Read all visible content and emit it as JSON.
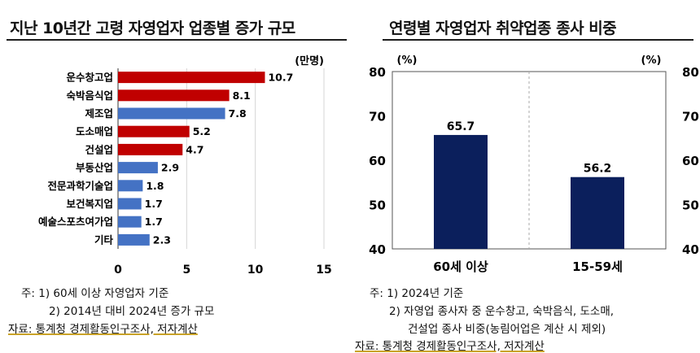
{
  "left": {
    "title": "지난 10년간 고령 자영업자 업종별 증가 규모",
    "unit": "(만명)",
    "notes": {
      "note1": "주: 1) 60세 이상 자영업자 기준",
      "note2": "2) 2014년 대비 2024년 증가 규모",
      "source": "자료: 통계청 경제활동인구조사, 저자계산"
    }
  },
  "right": {
    "title": "연령별 자영업자 취약업종 종사 비중",
    "unit_left": "(%)",
    "unit_right": "(%)",
    "notes": {
      "note1": "주: 1) 2024년 기준",
      "note2": "2) 자영업 종사자 중 운수창고, 숙박음식, 도소매,",
      "note3": "건설업 종사 비중(농림어업은 계산 시 제외)",
      "source": "자료: 통계청 경제활동인구조사, 저자계산"
    }
  },
  "chart_data": [
    {
      "type": "bar",
      "orientation": "horizontal",
      "title": "지난 10년간 고령 자영업자 업종별 증가 규모",
      "unit": "(만명)",
      "categories": [
        "운수창고업",
        "숙박음식업",
        "제조업",
        "도소매업",
        "건설업",
        "부동산업",
        "전문과학기술업",
        "보건복지업",
        "예술스포츠여가업",
        "기타"
      ],
      "values": [
        10.7,
        8.1,
        7.8,
        5.2,
        4.7,
        2.9,
        1.8,
        1.7,
        1.7,
        2.3
      ],
      "value_labels": [
        "10.7",
        "8.1",
        "7.8",
        "5.2",
        "4.7",
        "2.9",
        "1.8",
        "1.7",
        "1.7",
        "2.3"
      ],
      "bar_colors": [
        "#c00000",
        "#c00000",
        "#4472c4",
        "#c00000",
        "#c00000",
        "#4472c4",
        "#4472c4",
        "#4472c4",
        "#4472c4",
        "#4472c4"
      ],
      "xlim": [
        0,
        15
      ],
      "xticks": [
        "0",
        "5",
        "10",
        "15"
      ],
      "grid": true
    },
    {
      "type": "bar",
      "orientation": "vertical",
      "title": "연령별 자영업자 취약업종 종사 비중",
      "categories": [
        "60세 이상",
        "15-59세"
      ],
      "values": [
        65.7,
        56.2
      ],
      "value_labels": [
        "65.7",
        "56.2"
      ],
      "bar_color": "#0b1f5c",
      "ylim": [
        40,
        80
      ],
      "yticks": [
        "40",
        "50",
        "60",
        "70",
        "80"
      ],
      "ylabel_left": "(%)",
      "ylabel_right": "(%)",
      "grid": false
    }
  ]
}
